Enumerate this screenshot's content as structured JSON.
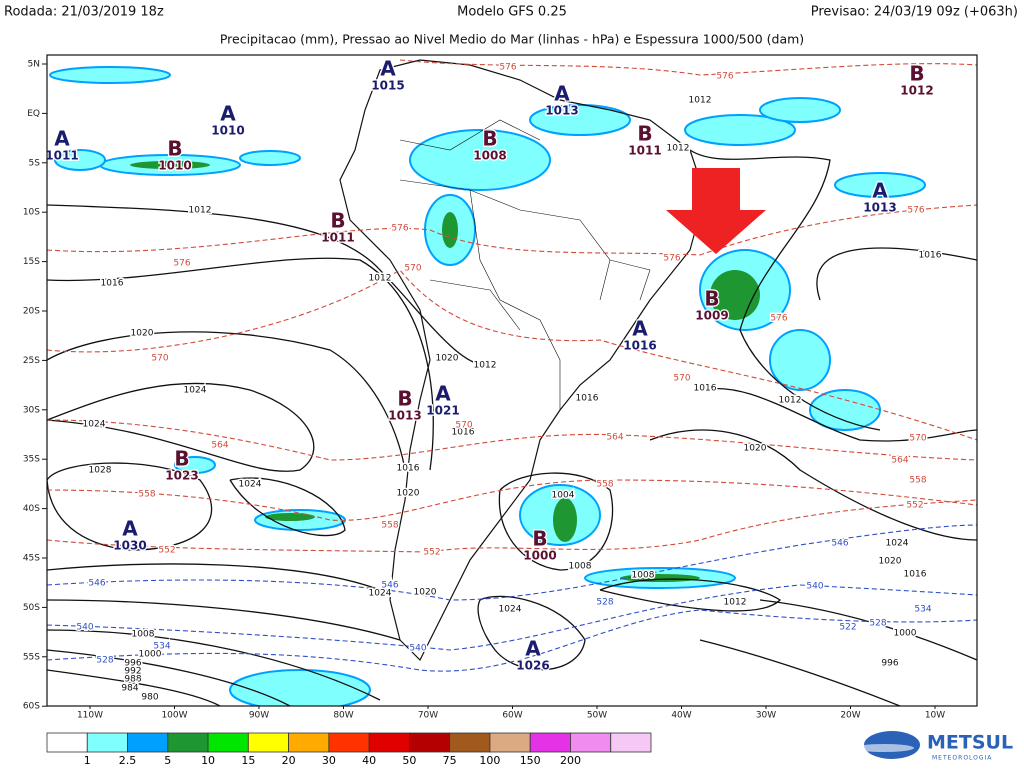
{
  "header": {
    "run": "Rodada: 21/03/2019 18z",
    "model": "Modelo GFS 0.25",
    "forecast": "Previsao: 24/03/19 09z (+063h)",
    "subtitle": "Precipitacao (mm), Pressao ao Nivel Medio do Mar (linhas - hPa) e Espessura 1000/500 (dam)"
  },
  "lat_labels": [
    "5N",
    "EQ",
    "5S",
    "10S",
    "15S",
    "20S",
    "25S",
    "30S",
    "35S",
    "40S",
    "45S",
    "50S",
    "55S",
    "60S"
  ],
  "lon_labels": [
    "110W",
    "100W",
    "90W",
    "80W",
    "70W",
    "60W",
    "50W",
    "40W",
    "30W",
    "20W",
    "10W"
  ],
  "pressure_centers": [
    {
      "letter": "A",
      "value": "1015"
    },
    {
      "letter": "A",
      "value": "1013"
    },
    {
      "letter": "B",
      "value": "1012"
    },
    {
      "letter": "A",
      "value": "1010"
    },
    {
      "letter": "A",
      "value": "1011"
    },
    {
      "letter": "B",
      "value": "1010"
    },
    {
      "letter": "B",
      "value": "1008"
    },
    {
      "letter": "B",
      "value": "1011"
    },
    {
      "letter": "A",
      "value": "1013"
    },
    {
      "letter": "B",
      "value": "1011"
    },
    {
      "letter": "B",
      "value": "1009"
    },
    {
      "letter": "A",
      "value": "1016"
    },
    {
      "letter": "B",
      "value": "1013"
    },
    {
      "letter": "A",
      "value": "1021"
    },
    {
      "letter": "B",
      "value": "1023"
    },
    {
      "letter": "A",
      "value": "1030"
    },
    {
      "letter": "B",
      "value": "1000"
    },
    {
      "letter": "A",
      "value": "1026"
    }
  ],
  "isobar_labels": [
    "1012",
    "1012",
    "1012",
    "1012",
    "1012",
    "1012",
    "1012",
    "1016",
    "1016",
    "1016",
    "1016",
    "1016",
    "1016",
    "1020",
    "1020",
    "1020",
    "1020",
    "1020",
    "1020",
    "1024",
    "1024",
    "1024",
    "1024",
    "1024",
    "1024",
    "1028",
    "1004",
    "1008",
    "1008",
    "1008",
    "1000",
    "1000",
    "996",
    "996",
    "992",
    "988",
    "984",
    "980",
    "1016"
  ],
  "thickness_labels": [
    "576",
    "576",
    "576",
    "576",
    "576",
    "576",
    "576",
    "570",
    "570",
    "570",
    "570",
    "570",
    "564",
    "564",
    "564",
    "558",
    "558",
    "558",
    "558",
    "552",
    "552",
    "552"
  ],
  "thickness_labels_low": [
    "546",
    "546",
    "546",
    "540",
    "540",
    "540",
    "534",
    "534",
    "528",
    "528",
    "528",
    "522"
  ],
  "colorbar": {
    "labels": [
      "1",
      "2.5",
      "5",
      "10",
      "15",
      "20",
      "30",
      "40",
      "50",
      "75",
      "100",
      "150",
      "200"
    ],
    "colors": [
      "#ffffff",
      "#80ffff",
      "#00a0ff",
      "#1e9632",
      "#00e600",
      "#ffff00",
      "#ffaa00",
      "#ff3200",
      "#e10000",
      "#b40000",
      "#a05a1e",
      "#dcaa82",
      "#e632e6",
      "#f08cf0",
      "#f5c8f5"
    ]
  },
  "logo": {
    "name": "METSUL",
    "tagline": "METEOROLOGIA"
  }
}
